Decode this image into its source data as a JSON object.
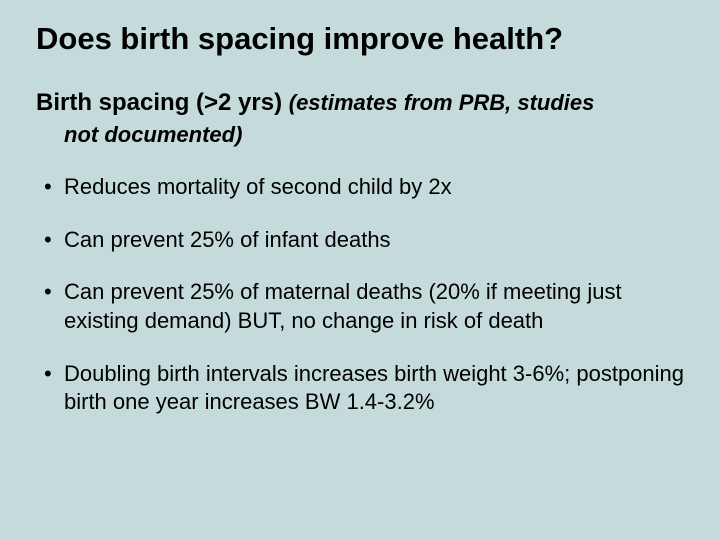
{
  "background_color": "#c5dada",
  "text_color": "#000000",
  "font_family": "Arial, Helvetica, sans-serif",
  "title": {
    "text": "Does birth spacing improve health?",
    "fontsize": 31,
    "weight": "bold"
  },
  "subtitle": {
    "main": "Birth spacing  (>2 yrs)  ",
    "italic_part1": "(estimates from PRB, studies",
    "italic_part2": "not documented)",
    "main_fontsize": 24,
    "italic_fontsize": 22,
    "weight": "bold"
  },
  "bullets": {
    "fontsize": 22,
    "line_height": 1.3,
    "items": [
      "Reduces mortality of second child by 2x",
      "Can prevent 25% of infant deaths",
      "Can prevent 25% of maternal deaths (20% if meeting just existing demand) BUT, no change in risk of death",
      "Doubling birth intervals increases birth weight 3-6%; postponing birth one year increases BW 1.4-3.2%"
    ]
  }
}
